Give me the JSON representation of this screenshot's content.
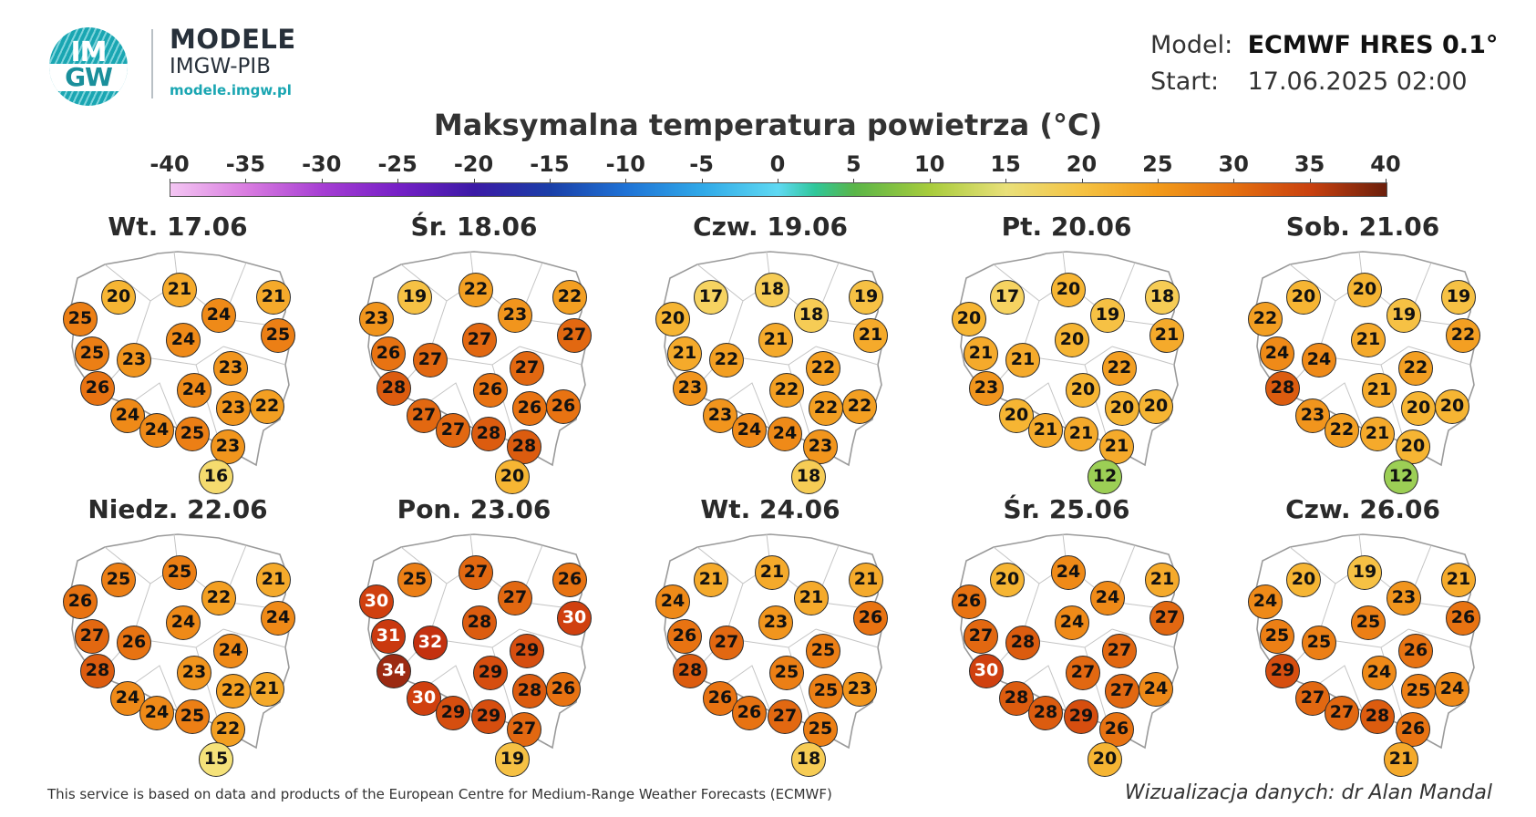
{
  "logo": {
    "mark_top": "IM",
    "mark_bottom": "GW",
    "title": "MODELE",
    "subtitle": "IMGW-PIB",
    "url": "modele.imgw.pl"
  },
  "meta": {
    "model_label": "Model:",
    "model_value": "ECMWF HRES 0.1°",
    "start_label": "Start:",
    "start_value": "17.06.2025 02:00"
  },
  "title": "Maksymalna temperatura powietrza (°C)",
  "scale": {
    "ticks": [
      "-40",
      "-35",
      "-30",
      "-25",
      "-20",
      "-15",
      "-10",
      "-5",
      "0",
      "5",
      "10",
      "15",
      "20",
      "25",
      "30",
      "35",
      "40"
    ]
  },
  "map_data": {
    "panels": [
      {
        "title": "Wt. 17.06",
        "values": [
          20,
          21,
          21,
          25,
          24,
          25,
          24,
          25,
          23,
          23,
          26,
          24,
          23,
          22,
          24,
          24,
          25,
          23,
          16
        ]
      },
      {
        "title": "Śr. 18.06",
        "values": [
          19,
          22,
          22,
          23,
          23,
          27,
          27,
          26,
          27,
          27,
          28,
          26,
          26,
          26,
          27,
          27,
          28,
          28,
          20
        ]
      },
      {
        "title": "Czw. 19.06",
        "values": [
          17,
          18,
          19,
          20,
          18,
          21,
          21,
          21,
          22,
          22,
          23,
          22,
          22,
          22,
          23,
          24,
          24,
          23,
          18
        ]
      },
      {
        "title": "Pt. 20.06",
        "values": [
          17,
          20,
          18,
          20,
          19,
          21,
          20,
          21,
          21,
          22,
          23,
          20,
          20,
          20,
          20,
          21,
          21,
          21,
          12
        ]
      },
      {
        "title": "Sob. 21.06",
        "values": [
          20,
          20,
          19,
          22,
          19,
          22,
          21,
          24,
          24,
          22,
          28,
          21,
          20,
          20,
          23,
          22,
          21,
          20,
          12
        ]
      },
      {
        "title": "Niedz. 22.06",
        "values": [
          25,
          25,
          21,
          26,
          22,
          24,
          24,
          27,
          26,
          24,
          28,
          23,
          22,
          21,
          24,
          24,
          25,
          22,
          15
        ]
      },
      {
        "title": "Pon. 23.06",
        "values": [
          25,
          27,
          26,
          30,
          27,
          30,
          28,
          31,
          32,
          29,
          34,
          29,
          28,
          26,
          30,
          29,
          29,
          27,
          19
        ]
      },
      {
        "title": "Wt. 24.06",
        "values": [
          21,
          21,
          21,
          24,
          21,
          26,
          23,
          26,
          27,
          25,
          28,
          25,
          25,
          23,
          26,
          26,
          27,
          25,
          18
        ]
      },
      {
        "title": "Śr. 25.06",
        "values": [
          20,
          24,
          21,
          26,
          24,
          27,
          24,
          27,
          28,
          27,
          30,
          27,
          27,
          24,
          28,
          28,
          29,
          26,
          20
        ]
      },
      {
        "title": "Czw. 26.06",
        "values": [
          20,
          19,
          21,
          24,
          23,
          26,
          25,
          25,
          25,
          26,
          29,
          24,
          25,
          24,
          27,
          27,
          28,
          26,
          21
        ]
      }
    ]
  },
  "footer": {
    "attribution": "This service is based on data and products of the European Centre for Medium-Range Weather Forecasts (ECMWF)",
    "credit": "Wizualizacja danych: dr Alan Mandal"
  }
}
